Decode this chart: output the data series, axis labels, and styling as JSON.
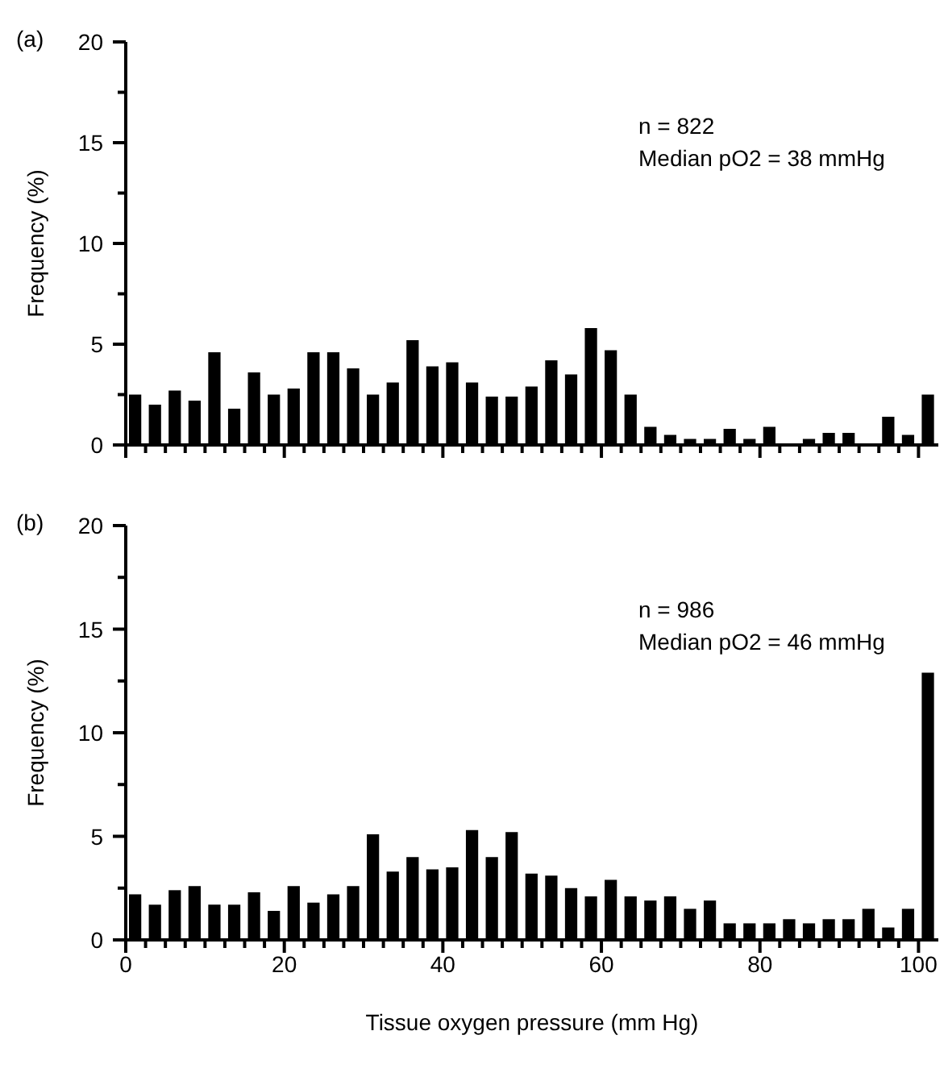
{
  "chart_data": [
    {
      "type": "histogram",
      "title": "(a)",
      "ylabel": "Frequency (%)",
      "annotations": [
        "n = 822",
        "Median pO2 = 38 mmHg"
      ],
      "tick_labels": "y",
      "bins": [
        0,
        2.5,
        5,
        7.5,
        10,
        12.5,
        15,
        17.5,
        20,
        22.5,
        25,
        27.5,
        30,
        32.5,
        35,
        37.5,
        40,
        42.5,
        45,
        47.5,
        50,
        52.5,
        55,
        57.5,
        60,
        62.5,
        65,
        67.5,
        70,
        72.5,
        75,
        77.5,
        80,
        82.5,
        85,
        87.5,
        90,
        92.5,
        95,
        97.5,
        100,
        102.5
      ],
      "values": [
        2.5,
        2.0,
        2.7,
        2.2,
        4.6,
        1.8,
        3.6,
        2.5,
        2.8,
        4.6,
        4.6,
        3.8,
        2.5,
        3.1,
        5.2,
        3.9,
        4.1,
        3.1,
        2.4,
        2.4,
        2.9,
        4.2,
        3.5,
        5.8,
        4.7,
        2.5,
        0.9,
        0.5,
        0.3,
        0.3,
        0.8,
        0.3,
        0.9,
        0,
        0.3,
        0.6,
        0.6,
        0,
        1.4,
        0.5,
        2.5
      ],
      "color": "#000000",
      "xlim": [
        0,
        102.5
      ],
      "ylim": [
        0,
        20
      ],
      "xticks": [
        0,
        {
          "value": 2.5,
          "label": null
        },
        {
          "value": 5,
          "label": null
        },
        {
          "value": 7.5,
          "label": null
        },
        {
          "value": 10,
          "label": null
        },
        {
          "value": 12.5,
          "label": null
        },
        {
          "value": 15,
          "label": null
        },
        {
          "value": 17.5,
          "label": null
        },
        20,
        {
          "value": 22.5,
          "label": null
        },
        {
          "value": 25,
          "label": null
        },
        {
          "value": 27.5,
          "label": null
        },
        {
          "value": 30,
          "label": null
        },
        {
          "value": 32.5,
          "label": null
        },
        {
          "value": 35,
          "label": null
        },
        {
          "value": 37.5,
          "label": null
        },
        40,
        {
          "value": 42.5,
          "label": null
        },
        {
          "value": 45,
          "label": null
        },
        {
          "value": 47.5,
          "label": null
        },
        {
          "value": 50,
          "label": null
        },
        {
          "value": 52.5,
          "label": null
        },
        {
          "value": 55,
          "label": null
        },
        {
          "value": 57.5,
          "label": null
        },
        60,
        {
          "value": 62.5,
          "label": null
        },
        {
          "value": 65,
          "label": null
        },
        {
          "value": 67.5,
          "label": null
        },
        {
          "value": 70,
          "label": null
        },
        {
          "value": 72.5,
          "label": null
        },
        {
          "value": 75,
          "label": null
        },
        {
          "value": 77.5,
          "label": null
        },
        80,
        {
          "value": 82.5,
          "label": null
        },
        {
          "value": 85,
          "label": null
        },
        {
          "value": 87.5,
          "label": null
        },
        {
          "value": 90,
          "label": null
        },
        {
          "value": 92.5,
          "label": null
        },
        {
          "value": 95,
          "label": null
        },
        {
          "value": 97.5,
          "label": null
        },
        100
      ],
      "yticks": [
        0,
        {
          "value": 2.5,
          "label": null
        },
        5,
        {
          "value": 7.5,
          "label": null
        },
        10,
        {
          "value": 12.5,
          "label": null
        },
        15,
        {
          "value": 17.5,
          "label": null
        },
        20
      ]
    },
    {
      "type": "histogram",
      "title": "(b)",
      "ylabel": "Frequency (%)",
      "xlabel": "Tissue oxygen pressure (mm Hg)",
      "annotations": [
        "n = 986",
        "Median pO2 = 46 mmHg"
      ],
      "bins": [
        0,
        2.5,
        5,
        7.5,
        10,
        12.5,
        15,
        17.5,
        20,
        22.5,
        25,
        27.5,
        30,
        32.5,
        35,
        37.5,
        40,
        42.5,
        45,
        47.5,
        50,
        52.5,
        55,
        57.5,
        60,
        62.5,
        65,
        67.5,
        70,
        72.5,
        75,
        77.5,
        80,
        82.5,
        85,
        87.5,
        90,
        92.5,
        95,
        97.5,
        100,
        102.5
      ],
      "values": [
        2.2,
        1.7,
        2.4,
        2.6,
        1.7,
        1.7,
        2.3,
        1.4,
        2.6,
        1.8,
        2.2,
        2.6,
        5.1,
        3.3,
        4.0,
        3.4,
        3.5,
        5.3,
        4.0,
        5.2,
        3.2,
        3.1,
        2.5,
        2.1,
        2.9,
        2.1,
        1.9,
        2.1,
        1.5,
        1.9,
        0.8,
        0.8,
        0.8,
        1.0,
        0.8,
        1.0,
        1.0,
        1.5,
        0.6,
        1.5,
        12.9
      ],
      "color": "#000000",
      "xlim": [
        0,
        102.5
      ],
      "ylim": [
        0,
        20
      ],
      "xticks": [
        0,
        {
          "value": 2.5,
          "label": null
        },
        {
          "value": 5,
          "label": null
        },
        {
          "value": 7.5,
          "label": null
        },
        {
          "value": 10,
          "label": null
        },
        {
          "value": 12.5,
          "label": null
        },
        {
          "value": 15,
          "label": null
        },
        {
          "value": 17.5,
          "label": null
        },
        20,
        {
          "value": 22.5,
          "label": null
        },
        {
          "value": 25,
          "label": null
        },
        {
          "value": 27.5,
          "label": null
        },
        {
          "value": 30,
          "label": null
        },
        {
          "value": 32.5,
          "label": null
        },
        {
          "value": 35,
          "label": null
        },
        {
          "value": 37.5,
          "label": null
        },
        40,
        {
          "value": 42.5,
          "label": null
        },
        {
          "value": 45,
          "label": null
        },
        {
          "value": 47.5,
          "label": null
        },
        {
          "value": 50,
          "label": null
        },
        {
          "value": 52.5,
          "label": null
        },
        {
          "value": 55,
          "label": null
        },
        {
          "value": 57.5,
          "label": null
        },
        60,
        {
          "value": 62.5,
          "label": null
        },
        {
          "value": 65,
          "label": null
        },
        {
          "value": 67.5,
          "label": null
        },
        {
          "value": 70,
          "label": null
        },
        {
          "value": 72.5,
          "label": null
        },
        {
          "value": 75,
          "label": null
        },
        {
          "value": 77.5,
          "label": null
        },
        80,
        {
          "value": 82.5,
          "label": null
        },
        {
          "value": 85,
          "label": null
        },
        {
          "value": 87.5,
          "label": null
        },
        {
          "value": 90,
          "label": null
        },
        {
          "value": 92.5,
          "label": null
        },
        {
          "value": 95,
          "label": null
        },
        {
          "value": 97.5,
          "label": null
        },
        100
      ],
      "yticks": [
        0,
        {
          "value": 2.5,
          "label": null
        },
        5,
        {
          "value": 7.5,
          "label": null
        },
        10,
        {
          "value": 12.5,
          "label": null
        },
        15,
        {
          "value": 17.5,
          "label": null
        },
        20
      ]
    }
  ]
}
